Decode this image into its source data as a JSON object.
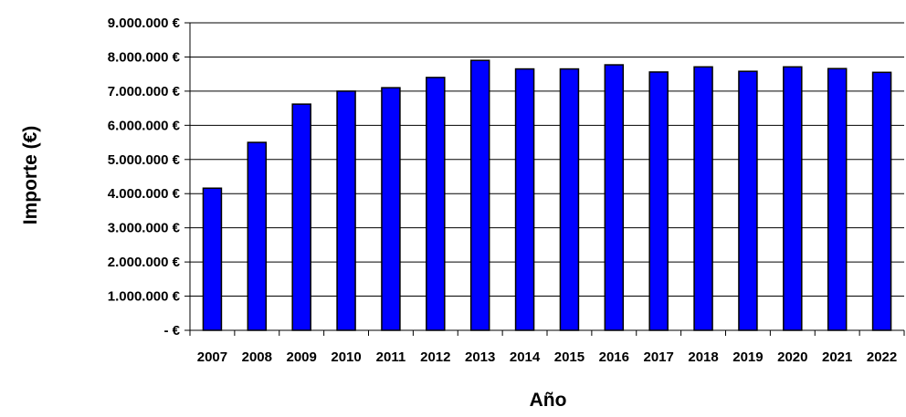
{
  "chart_data": {
    "type": "bar",
    "xlabel": "Año",
    "ylabel": "Importe (€)",
    "categories": [
      "2007",
      "2008",
      "2009",
      "2010",
      "2011",
      "2012",
      "2013",
      "2014",
      "2015",
      "2016",
      "2017",
      "2018",
      "2019",
      "2020",
      "2021",
      "2022"
    ],
    "values": [
      4160000,
      5500000,
      6620000,
      7000000,
      7100000,
      7400000,
      7900000,
      7650000,
      7650000,
      7770000,
      7560000,
      7710000,
      7580000,
      7710000,
      7660000,
      7550000
    ],
    "ylim": [
      0,
      9000000
    ],
    "y_ticks": [
      {
        "value": 0,
        "label": "- €"
      },
      {
        "value": 1000000,
        "label": "1.000.000 €"
      },
      {
        "value": 2000000,
        "label": "2.000.000 €"
      },
      {
        "value": 3000000,
        "label": "3.000.000 €"
      },
      {
        "value": 4000000,
        "label": "4.000.000 €"
      },
      {
        "value": 5000000,
        "label": "5.000.000 €"
      },
      {
        "value": 6000000,
        "label": "6.000.000 €"
      },
      {
        "value": 7000000,
        "label": "7.000.000 €"
      },
      {
        "value": 8000000,
        "label": "8.000.000 €"
      },
      {
        "value": 9000000,
        "label": "9.000.000 €"
      }
    ],
    "grid": true,
    "bar_color": "#0000FF",
    "bar_edge_color": "#000000",
    "legend": "none"
  }
}
